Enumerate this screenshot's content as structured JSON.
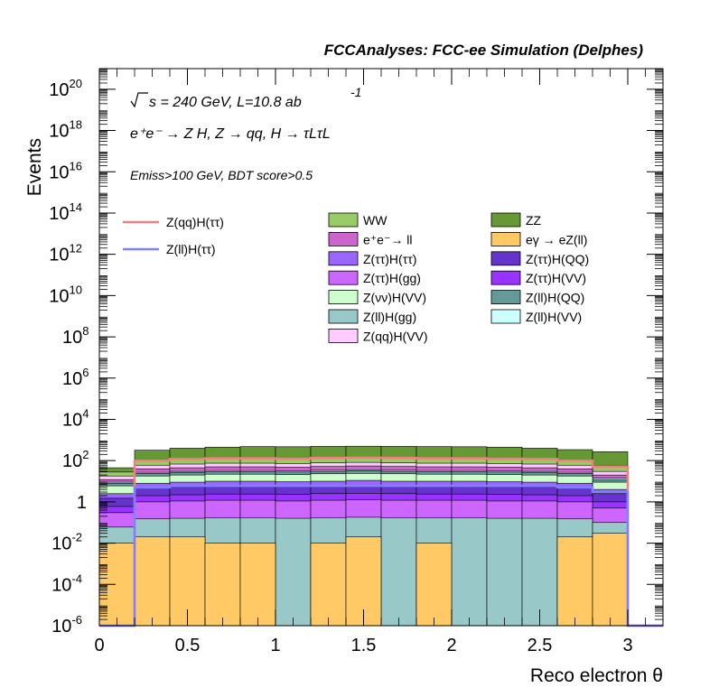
{
  "header": {
    "title": "FCCAnalyses: FCC-ee Simulation (Delphes)"
  },
  "annotations": {
    "sqrt_s": "s = 240 GeV, L=10.8 ab",
    "lumi_exp": "-1",
    "process": "e⁺e⁻ → Z H, Z → qq, H → τLτL",
    "cuts": "Emiss>100 GeV, BDT score>0.5"
  },
  "chart_data": {
    "type": "bar",
    "stacked": true,
    "log_y": true,
    "xlabel": "Reco electron θ",
    "ylabel": "Events",
    "xlim": [
      0,
      3.2
    ],
    "ylim": [
      1e-06,
      1e+21
    ],
    "bins": [
      0,
      0.2,
      0.4,
      0.6,
      0.8,
      1.0,
      1.2,
      1.4,
      1.6,
      1.8,
      2.0,
      2.2,
      2.4,
      2.6,
      2.8,
      3.0,
      3.2
    ],
    "x_ticks": [
      {
        "v": 0,
        "label": "0"
      },
      {
        "v": 0.5,
        "label": "0.5"
      },
      {
        "v": 1,
        "label": "1"
      },
      {
        "v": 1.5,
        "label": "1.5"
      },
      {
        "v": 2,
        "label": "2"
      },
      {
        "v": 2.5,
        "label": "2.5"
      },
      {
        "v": 3,
        "label": "3"
      }
    ],
    "y_ticks": [
      {
        "exp": -6,
        "label": "10",
        "sup": "-6"
      },
      {
        "exp": -4,
        "label": "10",
        "sup": "-4"
      },
      {
        "exp": -2,
        "label": "10",
        "sup": "-2"
      },
      {
        "exp": 0,
        "label": "1",
        "sup": ""
      },
      {
        "exp": 2,
        "label": "10",
        "sup": "2"
      },
      {
        "exp": 4,
        "label": "10",
        "sup": "4"
      },
      {
        "exp": 6,
        "label": "10",
        "sup": "6"
      },
      {
        "exp": 8,
        "label": "10",
        "sup": "8"
      },
      {
        "exp": 10,
        "label": "10",
        "sup": "10"
      },
      {
        "exp": 12,
        "label": "10",
        "sup": "12"
      },
      {
        "exp": 14,
        "label": "10",
        "sup": "14"
      },
      {
        "exp": 16,
        "label": "10",
        "sup": "16"
      },
      {
        "exp": 18,
        "label": "10",
        "sup": "18"
      },
      {
        "exp": 20,
        "label": "10",
        "sup": "20"
      }
    ],
    "stacked_totals": [
      {
        "name": "eγ → eZ(ll)",
        "color": "#FFCA65",
        "values": [
          0.01,
          0.02,
          0.02,
          0.01,
          0.01,
          0,
          0.01,
          0.02,
          0,
          0.01,
          0,
          0,
          0,
          0.02,
          0.03,
          0
        ]
      },
      {
        "name": "Z(ll)H(gg)",
        "color": "#98C8C8",
        "values": [
          0.06,
          0.15,
          0.16,
          0.17,
          0.17,
          0.16,
          0.17,
          0.18,
          0.17,
          0.17,
          0.17,
          0.16,
          0.16,
          0.15,
          0.1,
          0
        ]
      },
      {
        "name": "Z(ττ)H(gg)",
        "color": "#CC66FF",
        "values": [
          0.3,
          1.0,
          1.1,
          1.2,
          1.2,
          1.1,
          1.2,
          1.3,
          1.2,
          1.2,
          1.2,
          1.1,
          1.1,
          1.0,
          0.5,
          0
        ]
      },
      {
        "name": "Z(ττ)H(VV)",
        "color": "#9933FF",
        "values": [
          0.6,
          2.0,
          2.2,
          2.4,
          2.4,
          2.3,
          2.5,
          2.6,
          2.5,
          2.4,
          2.4,
          2.3,
          2.2,
          2.0,
          1.0,
          0
        ]
      },
      {
        "name": "Z(ττ)H(QQ)",
        "color": "#6633CC",
        "values": [
          1.5,
          5.0,
          5.5,
          6.0,
          6.0,
          5.8,
          6.2,
          6.5,
          6.2,
          6.0,
          6.0,
          5.8,
          5.5,
          5.0,
          2.5,
          0
        ]
      },
      {
        "name": "Z(ττ)H(ττ)",
        "color": "#9966FF",
        "values": [
          2.5,
          8.0,
          9.0,
          10,
          10,
          9.5,
          10,
          11,
          10,
          10,
          10,
          9.5,
          9.0,
          8.0,
          4.0,
          0
        ]
      },
      {
        "name": "Z(νν)H(VV)",
        "color": "#CCFFCC",
        "values": [
          6,
          18,
          20,
          22,
          22,
          21,
          23,
          24,
          23,
          22,
          22,
          21,
          20,
          18,
          9,
          0
        ]
      },
      {
        "name": "Z(ll)H(QQ)",
        "color": "#669999",
        "values": [
          8,
          24,
          27,
          29,
          29,
          28,
          30,
          32,
          30,
          29,
          29,
          28,
          27,
          24,
          12,
          0
        ]
      },
      {
        "name": "Z(ll)H(VV)",
        "color": "#CCFFFF",
        "values": [
          9,
          27,
          30,
          33,
          33,
          32,
          34,
          36,
          34,
          33,
          33,
          32,
          30,
          27,
          14,
          0
        ]
      },
      {
        "name": "e⁺e⁻→ ll",
        "color": "#CC66CC",
        "values": [
          12,
          40,
          45,
          50,
          50,
          48,
          52,
          55,
          52,
          50,
          50,
          48,
          45,
          40,
          20,
          0
        ]
      },
      {
        "name": "Z(qq)H(VV)",
        "color": "#FFCCFF",
        "values": [
          18,
          60,
          68,
          75,
          75,
          72,
          78,
          82,
          78,
          75,
          75,
          72,
          68,
          60,
          30,
          0
        ]
      },
      {
        "name": "WW",
        "color": "#99CC66",
        "values": [
          28,
          110,
          125,
          140,
          140,
          135,
          145,
          150,
          145,
          140,
          140,
          135,
          125,
          110,
          55,
          0
        ]
      },
      {
        "name": "ZZ",
        "color": "#669933",
        "values": [
          45,
          320,
          400,
          450,
          480,
          470,
          490,
          500,
          490,
          480,
          470,
          450,
          400,
          340,
          270,
          0
        ]
      }
    ],
    "lines": [
      {
        "name": "Z(qq)H(ττ)",
        "color": "#F08080",
        "values": [
          0,
          100,
          120,
          130,
          130,
          125,
          135,
          140,
          135,
          130,
          130,
          125,
          120,
          100,
          50,
          0
        ]
      },
      {
        "name": "Z(ll)H(ττ)",
        "color": "#8080FF",
        "values": [
          0,
          5,
          6,
          6,
          6,
          6,
          6,
          6,
          6,
          6,
          6,
          6,
          6,
          5,
          3,
          0
        ]
      }
    ],
    "legend": {
      "col1": [
        "WW",
        "e⁺e⁻→ ll",
        "Z(ττ)H(ττ)",
        "Z(ττ)H(gg)",
        "Z(νν)H(VV)",
        "Z(ll)H(gg)",
        "Z(qq)H(VV)"
      ],
      "col2": [
        "ZZ",
        "eγ → eZ(ll)",
        "Z(ττ)H(QQ)",
        "Z(ττ)H(VV)",
        "Z(ll)H(QQ)",
        "Z(ll)H(VV)"
      ],
      "lines": [
        "Z(qq)H(ττ)",
        "Z(ll)H(ττ)"
      ]
    }
  }
}
